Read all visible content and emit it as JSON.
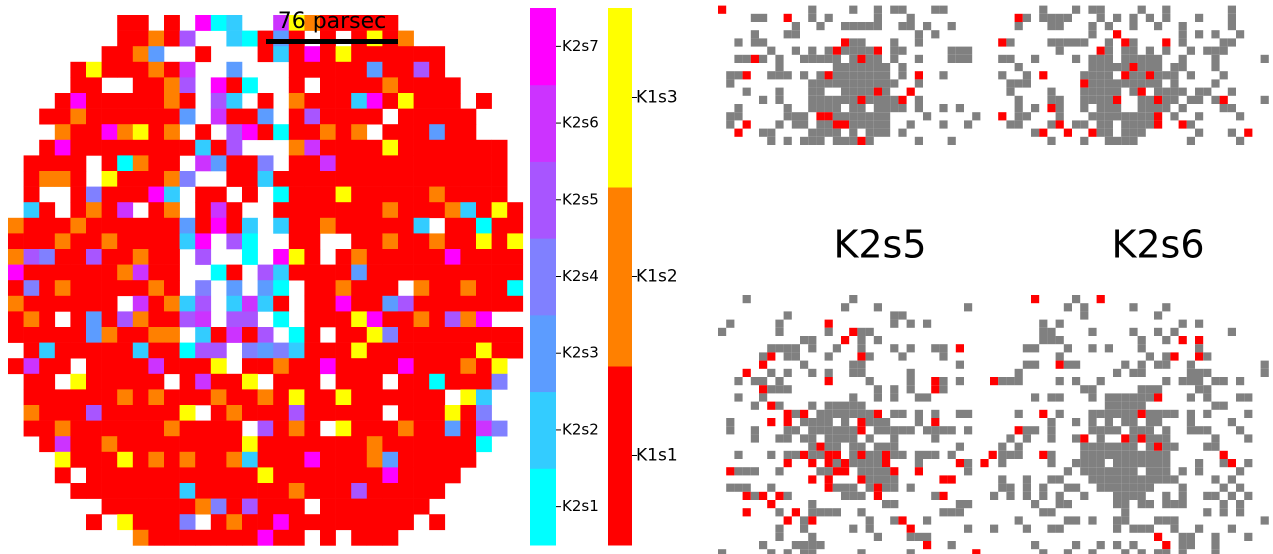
{
  "scale_bar": {
    "label": "76 parsec"
  },
  "colorbars": [
    {
      "segments": [
        {
          "label": "K2s1",
          "color": "#00ffff"
        },
        {
          "label": "K2s2",
          "color": "#33ccff"
        },
        {
          "label": "K2s3",
          "color": "#5c9cff"
        },
        {
          "label": "K2s4",
          "color": "#8080ff"
        },
        {
          "label": "K2s5",
          "color": "#a855ff"
        },
        {
          "label": "K2s6",
          "color": "#cc33ff"
        },
        {
          "label": "K2s7",
          "color": "#ff00ff"
        }
      ]
    },
    {
      "segments": [
        {
          "label": "K1s1",
          "color": "#ff0000"
        },
        {
          "label": "K1s2",
          "color": "#ff8000"
        },
        {
          "label": "K1s3",
          "color": "#ffff00"
        }
      ]
    }
  ],
  "panels": [
    {
      "title": "K2s5"
    },
    {
      "title": "K2s6"
    }
  ]
}
